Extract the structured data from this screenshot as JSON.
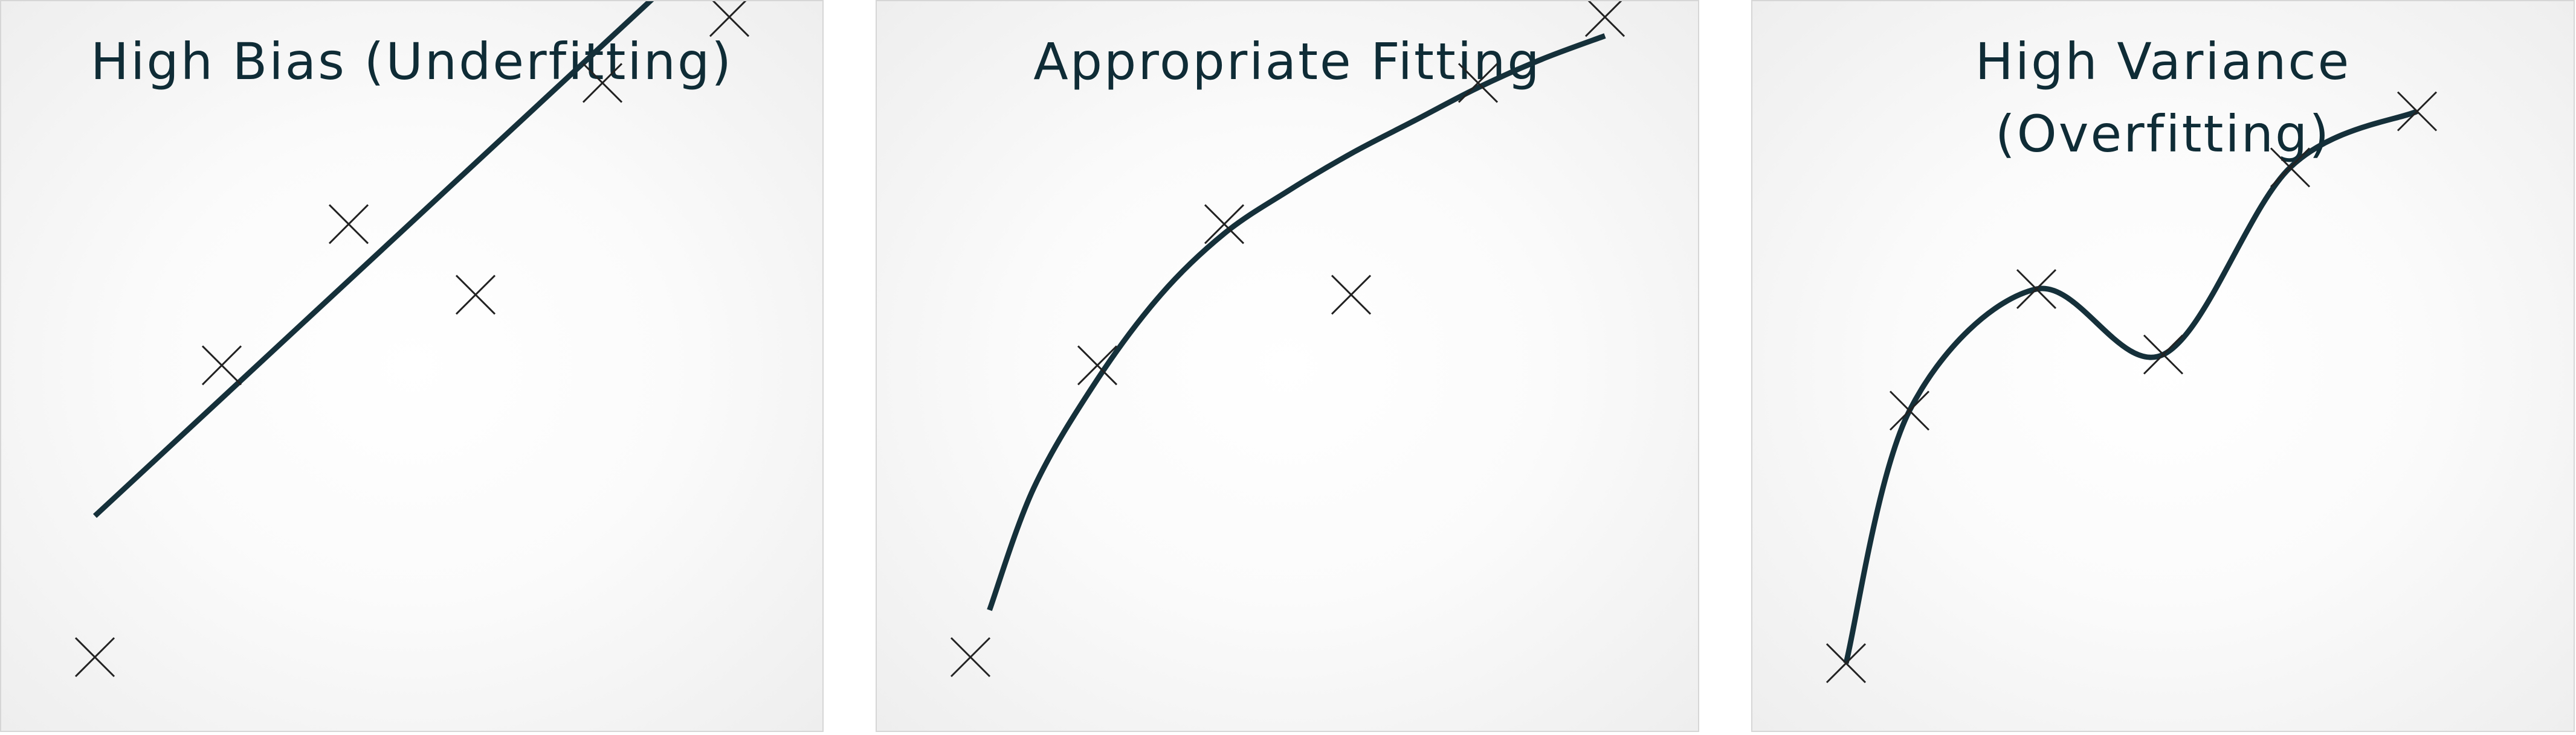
{
  "panels": [
    {
      "title": "High Bias (Underfitting)",
      "points": [
        [
          0,
          0
        ],
        [
          1,
          3.1
        ],
        [
          2,
          4.6
        ],
        [
          3,
          3.85
        ],
        [
          4,
          6.1
        ],
        [
          5,
          6.8
        ]
      ],
      "fit_type": "linear",
      "fit": [
        [
          0,
          1.5
        ],
        [
          4.4,
          7.0
        ]
      ]
    },
    {
      "title": "Appropriate Fitting",
      "points": [
        [
          0,
          0
        ],
        [
          1,
          3.1
        ],
        [
          2,
          4.6
        ],
        [
          3,
          3.85
        ],
        [
          4,
          6.1
        ],
        [
          5,
          6.8
        ]
      ],
      "fit_type": "smooth curve",
      "fit": [
        [
          0.15,
          0.5
        ],
        [
          0.5,
          1.8
        ],
        [
          1,
          2.95
        ],
        [
          1.5,
          3.85
        ],
        [
          2,
          4.5
        ],
        [
          2.5,
          4.95
        ],
        [
          3,
          5.35
        ],
        [
          3.5,
          5.7
        ],
        [
          4,
          6.05
        ],
        [
          4.5,
          6.35
        ],
        [
          5,
          6.6
        ]
      ]
    },
    {
      "title": "High Variance\n(Overfitting)",
      "points": [
        [
          0,
          0
        ],
        [
          0.5,
          2.7
        ],
        [
          1.5,
          4.0
        ],
        [
          2.5,
          3.3
        ],
        [
          3.5,
          5.3
        ],
        [
          4.5,
          5.9
        ]
      ],
      "fit_type": "interpolating curve",
      "fit": [
        [
          0,
          0
        ],
        [
          0.5,
          2.7
        ],
        [
          1.5,
          4.0
        ],
        [
          2.5,
          3.3
        ],
        [
          3.5,
          5.3
        ],
        [
          4.5,
          5.9
        ]
      ]
    }
  ],
  "colors": {
    "text": "#0f2c36",
    "curve": "#15303a",
    "marker": "#222222"
  }
}
